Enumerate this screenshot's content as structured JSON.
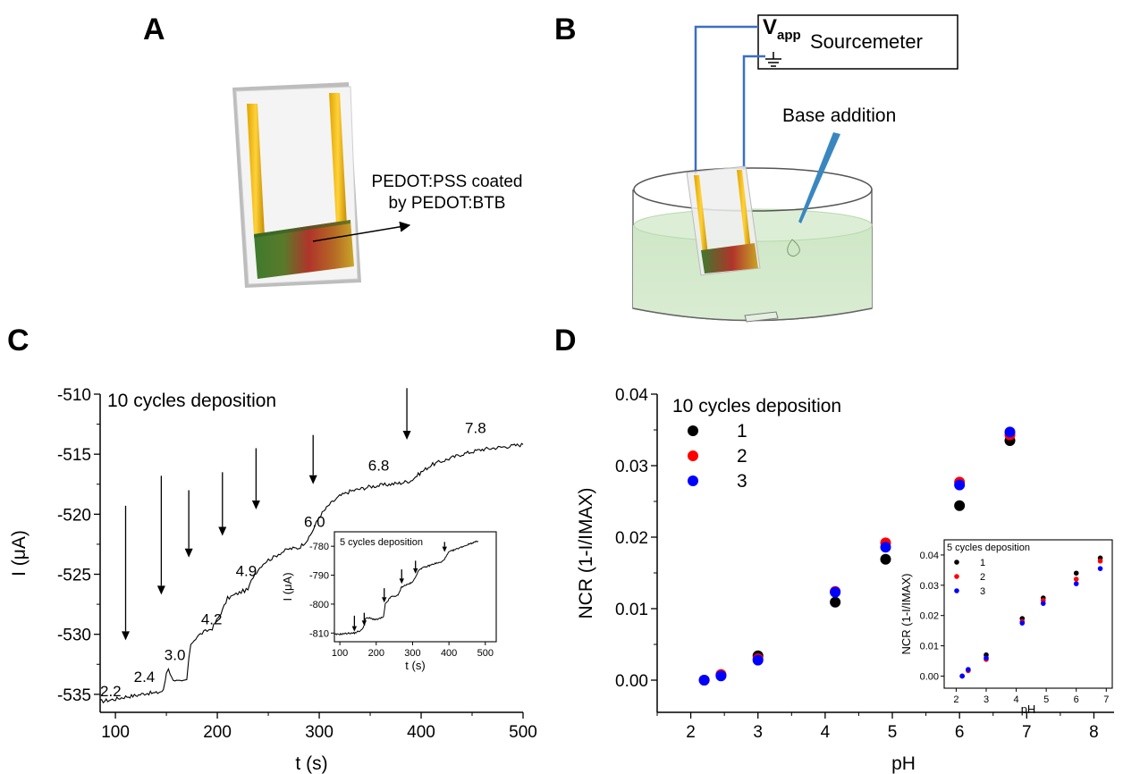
{
  "panels": {
    "a": {
      "letter": "A",
      "label_line1": "PEDOT:PSS coated",
      "label_line2": "by PEDOT:BTB"
    },
    "b": {
      "letter": "B",
      "vapp_main": "V",
      "vapp_sub": "app",
      "sourcemeter": "Sourcemeter",
      "base_addition": "Base addition"
    },
    "c": {
      "letter": "C"
    },
    "d": {
      "letter": "D"
    }
  },
  "chart_data": [
    {
      "id": "C",
      "type": "line",
      "annotation": "10 cycles deposition",
      "xlabel": "t (s)",
      "ylabel": "I (μA)",
      "xlim": [
        85,
        500
      ],
      "ylim": [
        -536.5,
        -510
      ],
      "xticks": [
        100,
        200,
        300,
        400,
        500
      ],
      "yticks": [
        -535,
        -530,
        -525,
        -520,
        -515,
        -510
      ],
      "series": [
        {
          "x": [
            85,
            100,
            110,
            120,
            130,
            140,
            147,
            149,
            150,
            152,
            155,
            160,
            165,
            170,
            172,
            174,
            176,
            180,
            185,
            190,
            195,
            205,
            210,
            215,
            220,
            225,
            230,
            235,
            240,
            245,
            250,
            255,
            260,
            265,
            270,
            280,
            290,
            300,
            310,
            320,
            330,
            340,
            350,
            360,
            370,
            380,
            390,
            400,
            410,
            420,
            430,
            440,
            450,
            460,
            470,
            480,
            490,
            500
          ],
          "values": [
            -535.6,
            -535.4,
            -535.2,
            -535.1,
            -534.9,
            -534.9,
            -534.7,
            -533.8,
            -533.2,
            -532.8,
            -533.6,
            -533.9,
            -534.0,
            -533.8,
            -532.0,
            -531.0,
            -530.6,
            -530.2,
            -529.9,
            -529.7,
            -529.5,
            -528.0,
            -527.0,
            -526.8,
            -526.6,
            -526.4,
            -526.3,
            -525.2,
            -524.6,
            -524.1,
            -523.8,
            -523.6,
            -523.3,
            -523.1,
            -522.9,
            -522.8,
            -522.0,
            -520.2,
            -519.2,
            -518.5,
            -518.1,
            -517.9,
            -517.7,
            -517.6,
            -517.5,
            -517.4,
            -517.2,
            -516.5,
            -515.9,
            -515.6,
            -515.3,
            -515.0,
            -514.8,
            -514.6,
            -514.5,
            -514.4,
            -514.3,
            -514.2
          ]
        }
      ],
      "ph_labels": [
        {
          "text": "2.2",
          "x": 85,
          "y": -535.6
        },
        {
          "text": "2.4",
          "x": 118,
          "y": -534.4
        },
        {
          "text": "3.0",
          "x": 148,
          "y": -532.6
        },
        {
          "text": "4.2",
          "x": 184,
          "y": -529.6
        },
        {
          "text": "4.9",
          "x": 218,
          "y": -525.6
        },
        {
          "text": "6.0",
          "x": 285,
          "y": -521.5
        },
        {
          "text": "6.8",
          "x": 348,
          "y": -516.8
        },
        {
          "text": "7.8",
          "x": 443,
          "y": -513.7
        }
      ],
      "arrows": [
        {
          "x": 110,
          "y_top": -519.3,
          "y_tip": -530.5
        },
        {
          "x": 145,
          "y_top": -516.8,
          "y_tip": -526.7
        },
        {
          "x": 172,
          "y_top": -518.0,
          "y_tip": -523.6
        },
        {
          "x": 205,
          "y_top": -516.5,
          "y_tip": -521.8
        },
        {
          "x": 238,
          "y_top": -514.5,
          "y_tip": -519.6
        },
        {
          "x": 294,
          "y_top": -513.4,
          "y_tip": -517.5
        },
        {
          "x": 386,
          "y_top": -509.5,
          "y_tip": -513.8
        }
      ],
      "inset": {
        "annotation": "5 cycles deposition",
        "xlabel": "t (s)",
        "ylabel": "I (μA)",
        "xlim": [
          85,
          530
        ],
        "ylim": [
          -813,
          -775
        ],
        "xticks": [
          100,
          200,
          300,
          400,
          500
        ],
        "yticks": [
          -810,
          -800,
          -790,
          -780
        ],
        "x": [
          85,
          100,
          120,
          140,
          150,
          160,
          168,
          170,
          180,
          200,
          220,
          225,
          240,
          260,
          270,
          280,
          300,
          310,
          320,
          340,
          360,
          380,
          390,
          400,
          420,
          440,
          460,
          480
        ],
        "values": [
          -810.5,
          -810.4,
          -810.1,
          -810.0,
          -809.5,
          -809.0,
          -807.0,
          -805.0,
          -804.8,
          -805.4,
          -804.5,
          -800.0,
          -797.5,
          -797.0,
          -794.0,
          -793.5,
          -792.5,
          -790.0,
          -787.8,
          -787.0,
          -786.0,
          -785.5,
          -784.0,
          -782.0,
          -781.0,
          -780.0,
          -779.0,
          -778.2
        ],
        "arrows": [
          {
            "x": 140,
            "y_top": -804.0,
            "y_tip": -809.5
          },
          {
            "x": 167,
            "y_top": -803.0,
            "y_tip": -807.5
          },
          {
            "x": 222,
            "y_top": -794.5,
            "y_tip": -799.5
          },
          {
            "x": 270,
            "y_top": -788.0,
            "y_tip": -793.0
          },
          {
            "x": 308,
            "y_top": -785.0,
            "y_tip": -789.5
          },
          {
            "x": 388,
            "y_top": -778.5,
            "y_tip": -782.0
          }
        ]
      }
    },
    {
      "id": "D",
      "type": "scatter",
      "xlabel": "pH",
      "ylabel": "NCR (1-I/IMAX)",
      "xlim": [
        1.5,
        8.3
      ],
      "ylim": [
        -0.0045,
        0.04
      ],
      "xticks": [
        2,
        3,
        4,
        5,
        6,
        7,
        8
      ],
      "yticks": [
        0.0,
        0.01,
        0.02,
        0.03,
        0.04
      ],
      "legend_title": "10 cycles deposition",
      "legend_placement": "top-left",
      "series": [
        {
          "name": "1",
          "color": "#000000",
          "x": [
            2.2,
            2.45,
            3.0,
            4.15,
            4.9,
            6.0,
            6.75
          ],
          "values": [
            0.0,
            0.0007,
            0.0034,
            0.0109,
            0.0169,
            0.0244,
            0.0335
          ]
        },
        {
          "name": "2",
          "color": "#ff0000",
          "x": [
            2.2,
            2.45,
            3.0,
            4.15,
            4.9,
            6.0,
            6.75
          ],
          "values": [
            0.0,
            0.0008,
            0.003,
            0.0124,
            0.0192,
            0.0277,
            0.0343
          ]
        },
        {
          "name": "3",
          "color": "#0000ff",
          "x": [
            2.2,
            2.45,
            3.0,
            4.15,
            4.9,
            6.0,
            6.75
          ],
          "values": [
            0.0,
            0.0006,
            0.0028,
            0.0123,
            0.0186,
            0.0273,
            0.0347
          ]
        }
      ],
      "inset": {
        "legend_title": "5 cycles deposition",
        "xlabel": "pH",
        "ylabel": "NCR (1-I/IMAX)",
        "xlim": [
          1.6,
          7.2
        ],
        "ylim": [
          -0.004,
          0.045
        ],
        "xticks": [
          2,
          3,
          4,
          5,
          6,
          7
        ],
        "yticks": [
          0.0,
          0.01,
          0.02,
          0.03,
          0.04
        ],
        "series": [
          {
            "name": "1",
            "color": "#000000",
            "x": [
              2.2,
              2.4,
              3.0,
              4.2,
              4.9,
              6.0,
              6.8
            ],
            "values": [
              0.0,
              0.002,
              0.007,
              0.019,
              0.0258,
              0.034,
              0.039
            ]
          },
          {
            "name": "2",
            "color": "#ff0000",
            "x": [
              2.2,
              2.4,
              3.0,
              4.2,
              4.9,
              6.0,
              6.8
            ],
            "values": [
              0.0,
              0.0018,
              0.0055,
              0.018,
              0.025,
              0.032,
              0.038
            ]
          },
          {
            "name": "3",
            "color": "#0000ff",
            "x": [
              2.2,
              2.4,
              3.0,
              4.2,
              4.9,
              6.0,
              6.8
            ],
            "values": [
              0.0,
              0.0022,
              0.006,
              0.0175,
              0.024,
              0.0305,
              0.0355
            ]
          }
        ]
      }
    }
  ]
}
